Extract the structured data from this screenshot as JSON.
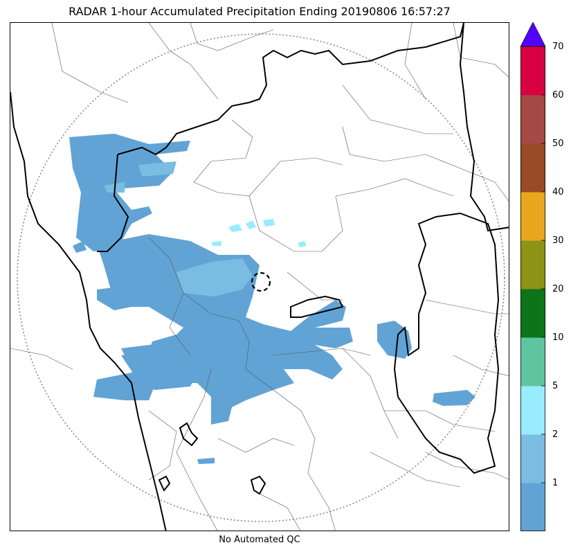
{
  "title": "RADAR 1-hour Accumulated Precipitation Ending 20190806 16:57:27",
  "footer": "No Automated QC",
  "colorbar": {
    "extend": "max",
    "extend_color": "#5400ff",
    "bins": [
      {
        "from": 0,
        "to": 1,
        "color": "#62a3d5"
      },
      {
        "from": 1,
        "to": 2,
        "color": "#7bbde2"
      },
      {
        "from": 2,
        "to": 5,
        "color": "#98ecfe"
      },
      {
        "from": 5,
        "to": 10,
        "color": "#5fc59e"
      },
      {
        "from": 10,
        "to": 20,
        "color": "#0d7419"
      },
      {
        "from": 20,
        "to": 30,
        "color": "#8c9316"
      },
      {
        "from": 30,
        "to": 40,
        "color": "#e8a71d"
      },
      {
        "from": 40,
        "to": 50,
        "color": "#994a27"
      },
      {
        "from": 50,
        "to": 60,
        "color": "#a44943"
      },
      {
        "from": 60,
        "to": 70,
        "color": "#d80040"
      }
    ],
    "tick_labels": [
      "1",
      "2",
      "5",
      "10",
      "20",
      "30",
      "40",
      "50",
      "60",
      "70"
    ]
  }
}
